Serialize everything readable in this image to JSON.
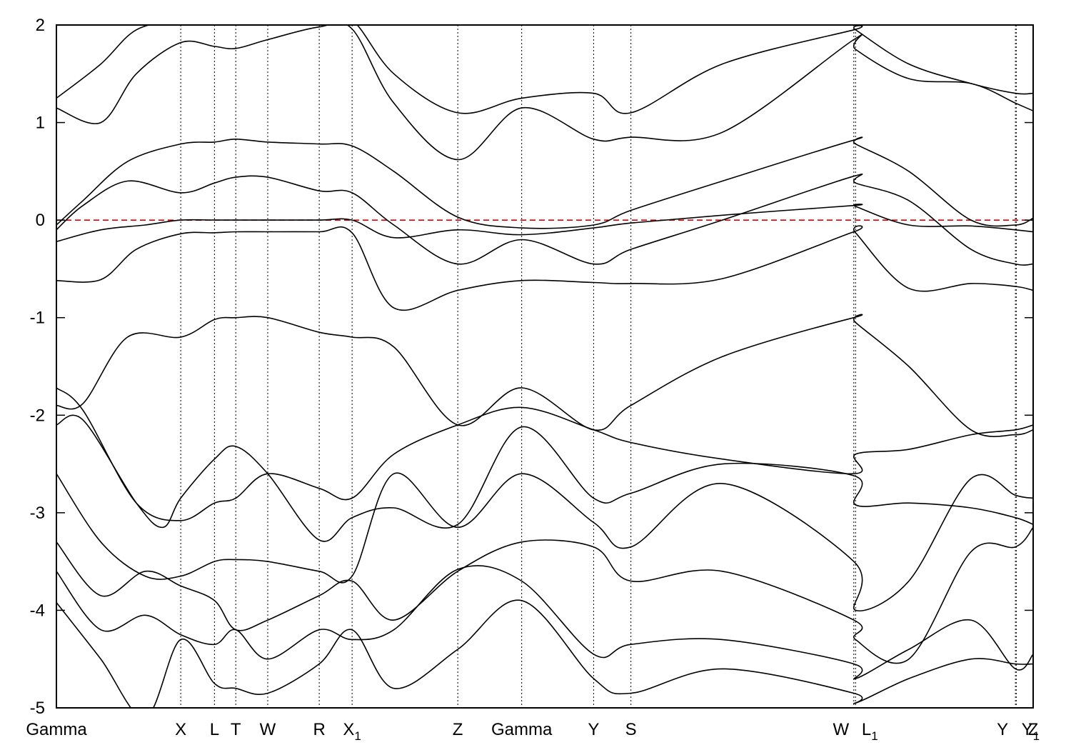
{
  "chart_data": {
    "type": "line",
    "title": "",
    "xlabel": "",
    "ylabel": "",
    "ylim": [
      -5,
      2
    ],
    "yticks": [
      -5,
      -4,
      -3,
      -2,
      -1,
      0,
      1,
      2
    ],
    "grid": "dotted vertical lines at high-symmetry points",
    "fermi_level": {
      "value": 0,
      "color": "#e00000",
      "style": "dashed"
    },
    "kpoints": [
      {
        "x": 0,
        "label": "Gamma",
        "sub": ""
      },
      {
        "x": 1.4,
        "label": "X",
        "sub": ""
      },
      {
        "x": 1.78,
        "label": "L",
        "sub": ""
      },
      {
        "x": 2.02,
        "label": "T",
        "sub": ""
      },
      {
        "x": 2.38,
        "label": "W",
        "sub": ""
      },
      {
        "x": 2.96,
        "label": "R",
        "sub": ""
      },
      {
        "x": 3.33,
        "label": "X",
        "sub": "1"
      },
      {
        "x": 4.52,
        "label": "Z",
        "sub": ""
      },
      {
        "x": 5.24,
        "label": "Gamma",
        "sub": ""
      },
      {
        "x": 6.05,
        "label": "Y",
        "sub": ""
      },
      {
        "x": 6.47,
        "label": "S",
        "sub": ""
      },
      {
        "x": 8.98,
        "label": "W",
        "sub": ""
      },
      {
        "x": 9.0,
        "label": "L",
        "sub": "1"
      },
      {
        "x": 10.8,
        "label": "Y",
        "sub": ""
      },
      {
        "x": 10.81,
        "label": "Y",
        "sub": "1"
      },
      {
        "x": 11.0,
        "label": "Z",
        "sub": ""
      }
    ],
    "xlim": [
      0,
      11.0
    ],
    "series": [
      {
        "x": [
          0,
          0.5,
          0.9,
          1.4,
          1.78,
          2.02,
          2.38,
          2.96,
          3.33,
          3.8,
          4.52,
          5.24,
          6.05,
          6.47,
          7.5,
          8.98,
          9.0,
          9.6,
          10.3,
          10.8,
          11.0
        ],
        "y": [
          -0.62,
          -0.61,
          -0.3,
          -0.14,
          -0.13,
          -0.12,
          -0.12,
          -0.12,
          -0.13,
          -0.9,
          -0.72,
          -0.62,
          -0.64,
          -0.65,
          -0.6,
          -0.12,
          -0.13,
          -0.7,
          -0.65,
          -0.68,
          -0.72
        ]
      },
      {
        "x": [
          0,
          0.5,
          1.0,
          1.4,
          1.78,
          2.02,
          2.38,
          2.96,
          3.33,
          3.8,
          4.52,
          5.24,
          6.05,
          6.47,
          7.5,
          8.98,
          9.0,
          9.6,
          10.3,
          10.8,
          11.0
        ],
        "y": [
          -0.22,
          -0.1,
          -0.05,
          0.0,
          0.0,
          0.0,
          0.0,
          0.0,
          0.0,
          -0.18,
          -0.1,
          -0.15,
          -0.08,
          -0.03,
          0.05,
          0.15,
          0.14,
          -0.05,
          -0.06,
          -0.1,
          -0.12
        ]
      },
      {
        "x": [
          0,
          0.3,
          0.8,
          1.4,
          1.78,
          2.02,
          2.38,
          2.96,
          3.33,
          3.8,
          4.52,
          5.24,
          6.05,
          6.47,
          7.5,
          8.98,
          9.0,
          9.6,
          10.3,
          10.8,
          11.0
        ],
        "y": [
          -0.1,
          0.15,
          0.4,
          0.28,
          0.38,
          0.44,
          0.44,
          0.3,
          0.28,
          -0.05,
          -0.45,
          -0.2,
          -0.45,
          -0.3,
          0.0,
          0.45,
          0.38,
          0.2,
          -0.3,
          -0.45,
          -0.45
        ]
      },
      {
        "x": [
          0,
          0.3,
          0.8,
          1.4,
          1.78,
          2.02,
          2.38,
          2.96,
          3.33,
          3.8,
          4.52,
          5.24,
          6.05,
          6.47,
          7.5,
          8.98,
          9.0,
          9.6,
          10.3,
          10.8,
          11.0
        ],
        "y": [
          -0.05,
          0.2,
          0.6,
          0.78,
          0.8,
          0.83,
          0.8,
          0.78,
          0.76,
          0.5,
          0.03,
          -0.08,
          -0.05,
          0.1,
          0.4,
          0.82,
          0.78,
          0.5,
          0.0,
          -0.05,
          0.02
        ]
      },
      {
        "x": [
          0,
          0.5,
          0.9,
          1.4,
          1.78,
          2.02,
          2.38,
          2.96,
          3.33,
          3.8,
          4.52,
          5.24,
          6.05,
          6.47,
          7.5,
          8.98,
          9.0,
          9.6,
          10.3,
          10.8,
          11.0
        ],
        "y": [
          1.15,
          1.0,
          1.5,
          1.82,
          1.78,
          1.76,
          1.85,
          1.98,
          1.96,
          1.2,
          0.62,
          1.15,
          0.83,
          0.85,
          0.9,
          1.85,
          1.75,
          1.45,
          1.4,
          1.2,
          1.12
        ]
      },
      {
        "x": [
          0,
          0.5,
          0.9,
          1.4,
          1.78,
          2.02,
          2.38,
          2.96,
          3.33,
          3.8,
          4.52,
          5.24,
          6.05,
          6.47,
          7.5,
          8.98,
          9.0,
          9.6,
          10.3,
          10.8,
          11.0
        ],
        "y": [
          1.25,
          1.6,
          1.95,
          2.05,
          2.05,
          2.05,
          2.05,
          2.05,
          2.05,
          1.5,
          1.1,
          1.25,
          1.3,
          1.1,
          1.6,
          1.95,
          1.95,
          1.6,
          1.4,
          1.3,
          1.3
        ]
      },
      {
        "x": [
          0,
          0.3,
          0.8,
          1.4,
          1.78,
          2.02,
          2.38,
          2.96,
          3.33,
          3.8,
          4.52,
          5.24,
          6.05,
          6.47,
          7.5,
          8.98,
          9.0,
          9.6,
          10.3,
          10.8,
          11.0
        ],
        "y": [
          -1.9,
          -1.88,
          -1.2,
          -1.2,
          -1.02,
          -1.0,
          -1.0,
          -1.15,
          -1.2,
          -1.3,
          -2.1,
          -1.72,
          -2.15,
          -1.9,
          -1.4,
          -1.0,
          -1.05,
          -1.5,
          -2.15,
          -2.2,
          -2.15
        ]
      },
      {
        "x": [
          0,
          0.3,
          0.9,
          1.4,
          1.78,
          2.02,
          2.38,
          2.96,
          3.33,
          3.8,
          4.52,
          5.24,
          6.05,
          6.47,
          7.5,
          8.98,
          9.0,
          9.6,
          10.3,
          10.8,
          11.0
        ],
        "y": [
          -1.72,
          -1.95,
          -2.9,
          -3.08,
          -2.9,
          -2.85,
          -2.6,
          -2.75,
          -2.85,
          -2.4,
          -2.1,
          -1.92,
          -2.15,
          -2.28,
          -2.45,
          -2.6,
          -2.4,
          -2.35,
          -2.2,
          -2.15,
          -2.1
        ]
      },
      {
        "x": [
          0,
          0.3,
          0.9,
          1.2,
          1.4,
          1.78,
          2.02,
          2.38,
          2.96,
          3.33,
          3.8,
          4.52,
          5.24,
          6.05,
          6.47,
          7.5,
          8.98,
          9.0,
          9.6,
          10.3,
          10.8,
          11.0
        ],
        "y": [
          -2.1,
          -2.05,
          -2.9,
          -3.15,
          -2.85,
          -2.45,
          -2.32,
          -2.6,
          -3.28,
          -3.05,
          -2.95,
          -3.12,
          -2.12,
          -2.85,
          -2.8,
          -2.5,
          -2.62,
          -2.92,
          -2.9,
          -2.95,
          -3.05,
          -3.12
        ]
      },
      {
        "x": [
          0,
          0.5,
          1.0,
          1.4,
          1.78,
          2.02,
          2.38,
          2.96,
          3.33,
          3.8,
          4.52,
          5.24,
          6.05,
          6.47,
          7.5,
          8.98,
          9.0,
          9.6,
          10.3,
          10.8,
          11.0
        ],
        "y": [
          -2.6,
          -3.3,
          -3.65,
          -3.65,
          -3.5,
          -3.48,
          -3.5,
          -3.6,
          -3.65,
          -2.6,
          -3.15,
          -2.6,
          -3.1,
          -3.35,
          -2.7,
          -3.5,
          -4.0,
          -3.7,
          -2.65,
          -2.82,
          -2.85
        ]
      },
      {
        "x": [
          0,
          0.5,
          1.0,
          1.4,
          1.78,
          2.02,
          2.38,
          2.96,
          3.33,
          3.8,
          4.52,
          5.24,
          6.05,
          6.47,
          7.5,
          8.98,
          9.0,
          9.6,
          10.3,
          10.8,
          11.0
        ],
        "y": [
          -3.3,
          -3.85,
          -3.6,
          -3.75,
          -3.9,
          -4.2,
          -4.1,
          -3.85,
          -3.7,
          -4.1,
          -3.6,
          -3.3,
          -3.35,
          -3.7,
          -3.6,
          -4.1,
          -4.3,
          -4.5,
          -3.4,
          -3.35,
          -3.15
        ]
      },
      {
        "x": [
          0,
          0.5,
          1.0,
          1.4,
          1.78,
          2.02,
          2.38,
          2.96,
          3.33,
          3.8,
          4.52,
          5.24,
          6.05,
          6.47,
          7.5,
          8.98,
          9.0,
          9.6,
          10.3,
          10.8,
          11.0
        ],
        "y": [
          -3.6,
          -4.2,
          -4.05,
          -4.25,
          -4.35,
          -4.2,
          -4.5,
          -4.2,
          -4.3,
          -4.2,
          -3.58,
          -3.7,
          -4.45,
          -4.35,
          -4.3,
          -4.55,
          -4.7,
          -4.4,
          -4.1,
          -4.6,
          -4.45
        ]
      },
      {
        "x": [
          0,
          0.5,
          1.0,
          1.4,
          1.78,
          2.02,
          2.38,
          2.96,
          3.33,
          3.8,
          4.52,
          5.24,
          6.05,
          6.47,
          7.5,
          8.98,
          9.0,
          9.6,
          10.3,
          10.8,
          11.0
        ],
        "y": [
          -3.92,
          -4.5,
          -5.1,
          -4.3,
          -4.75,
          -4.8,
          -4.85,
          -4.55,
          -4.2,
          -4.8,
          -4.4,
          -3.9,
          -4.7,
          -4.85,
          -4.6,
          -4.85,
          -4.95,
          -4.7,
          -4.5,
          -4.55,
          -4.55
        ]
      }
    ]
  }
}
